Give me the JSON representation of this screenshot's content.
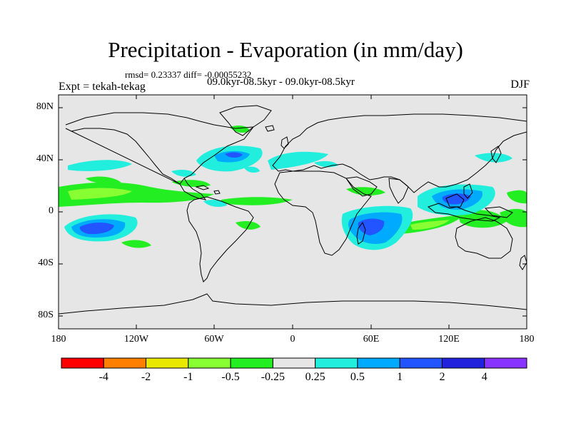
{
  "title": "Precipitation - Evaporation (in mm/day)",
  "stats": "rmsd= 0.23337 diff= -0.00055232",
  "period": "09.0kyr-08.5kyr - 09.0kyr-08.5kyr",
  "experiment": "Expt = tekah-tekag",
  "season": "DJF",
  "lat_labels": [
    "80N",
    "40N",
    "0",
    "40S",
    "80S"
  ],
  "lon_labels": [
    "180",
    "120W",
    "60W",
    "0",
    "60E",
    "120E",
    "180"
  ],
  "colorbar": {
    "colors": [
      "#ff0000",
      "#ff8000",
      "#e8e800",
      "#88ff33",
      "#22ee22",
      "#e6e6e6",
      "#22eedd",
      "#00aaff",
      "#2255ff",
      "#2222dd",
      "#8833ff"
    ],
    "labels": [
      "-4",
      "-2",
      "-1",
      "-0.5",
      "-0.25",
      "0.25",
      "0.5",
      "1",
      "2",
      "4"
    ]
  },
  "map_background": "#e6e6e6",
  "anomaly_regions": [
    {
      "region": "tropical Pacific 15N",
      "level": "-0.5"
    },
    {
      "region": "South Pacific 15S 165W",
      "level": "2"
    },
    {
      "region": "North Atlantic 40N",
      "level": "1"
    },
    {
      "region": "SW Indian Ocean",
      "level": "1"
    },
    {
      "region": "Indian Ocean 20S",
      "level": "-0.5"
    },
    {
      "region": "Maritime Continent",
      "level": "1"
    },
    {
      "region": "Northwest Australia",
      "level": "-0.5"
    }
  ]
}
